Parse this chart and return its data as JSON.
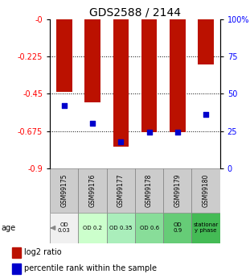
{
  "title": "GDS2588 / 2144",
  "samples": [
    "GSM99175",
    "GSM99176",
    "GSM99177",
    "GSM99178",
    "GSM99179",
    "GSM99180"
  ],
  "log2_ratio": [
    -0.44,
    -0.5,
    -0.77,
    -0.68,
    -0.68,
    -0.27
  ],
  "percentile_rank_pct": [
    42,
    30,
    18,
    24,
    24,
    36
  ],
  "ylim_left": [
    -0.9,
    0.0
  ],
  "ylim_right": [
    0,
    100
  ],
  "yticks_left": [
    0.0,
    -0.225,
    -0.45,
    -0.675,
    -0.9
  ],
  "ytick_labels_left": [
    "-0",
    "-0.225",
    "-0.45",
    "-0.675",
    "-0.9"
  ],
  "yticks_right": [
    100,
    75,
    50,
    25,
    0
  ],
  "ytick_labels_right": [
    "100%",
    "75",
    "50",
    "25",
    "0"
  ],
  "age_labels": [
    "OD\n0.03",
    "OD 0.2",
    "OD 0.35",
    "OD 0.6",
    "OD\n0.9",
    "stationar\ny phase"
  ],
  "age_bg_colors": [
    "#f0f0f0",
    "#ccffcc",
    "#99ee88",
    "#77dd66",
    "#55cc44",
    "#33bb22"
  ],
  "sample_bg_color": "#cccccc",
  "bar_color": "#bb1100",
  "dot_color": "#0000cc",
  "bar_width": 0.55,
  "dot_size": 25,
  "title_fontsize": 10,
  "tick_fontsize": 7,
  "legend_fontsize": 7
}
